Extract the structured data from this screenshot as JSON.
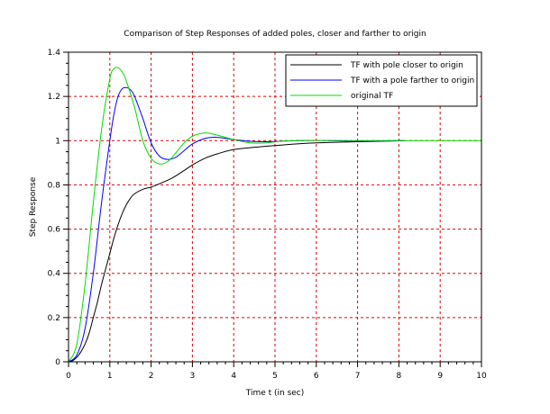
{
  "chart_data": {
    "type": "line",
    "title": "Comparison of Step Responses of added poles, closer and farther to origin",
    "xlabel": "Time t (in sec)",
    "ylabel": "Step Response",
    "xlim": [
      0,
      10
    ],
    "ylim": [
      0,
      1.4
    ],
    "x_ticks": [
      "0",
      "1",
      "2",
      "3",
      "4",
      "5",
      "6",
      "7",
      "8",
      "9",
      "10"
    ],
    "y_ticks": [
      "0",
      "0.2",
      "0.4",
      "0.6",
      "0.8",
      "1",
      "1.2",
      "1.4"
    ],
    "grid": true,
    "legend_position": "top-right",
    "series": [
      {
        "name": "TF with pole closer to origin",
        "color": "#000000",
        "x": [
          0,
          0.1,
          0.2,
          0.3,
          0.4,
          0.5,
          0.6,
          0.7,
          0.8,
          0.9,
          1.0,
          1.1,
          1.2,
          1.3,
          1.4,
          1.5,
          1.6,
          1.8,
          2.0,
          2.2,
          2.5,
          2.8,
          3.0,
          3.3,
          3.6,
          4.0,
          4.5,
          5.0,
          5.5,
          6.0,
          7.0,
          8.0,
          8.1
        ],
        "y": [
          0,
          0.005,
          0.02,
          0.045,
          0.08,
          0.13,
          0.2,
          0.27,
          0.35,
          0.42,
          0.49,
          0.56,
          0.62,
          0.67,
          0.71,
          0.74,
          0.76,
          0.78,
          0.79,
          0.805,
          0.83,
          0.865,
          0.89,
          0.92,
          0.94,
          0.96,
          0.97,
          0.978,
          0.985,
          0.99,
          0.995,
          0.999,
          1.0
        ]
      },
      {
        "name": "TF with a pole farther to origin",
        "color": "#0000ff",
        "x": [
          0,
          0.2,
          0.4,
          0.6,
          0.8,
          1.0,
          1.1,
          1.2,
          1.3,
          1.4,
          1.5,
          1.6,
          1.8,
          2.0,
          2.2,
          2.4,
          2.6,
          2.8,
          3.0,
          3.3,
          3.6,
          4.0,
          4.4,
          4.8,
          5.2,
          5.6,
          6.0,
          7.0,
          8.0,
          8.1
        ],
        "y": [
          0,
          0.03,
          0.15,
          0.4,
          0.72,
          1.0,
          1.12,
          1.2,
          1.235,
          1.24,
          1.23,
          1.2,
          1.1,
          0.99,
          0.93,
          0.915,
          0.925,
          0.955,
          0.985,
          1.01,
          1.015,
          1.005,
          0.997,
          0.995,
          0.998,
          1.0,
          1.001,
          0.998,
          1.0,
          1.0
        ]
      },
      {
        "name": "original TF",
        "color": "#00dd00",
        "x": [
          0,
          0.2,
          0.4,
          0.6,
          0.8,
          1.0,
          1.1,
          1.2,
          1.3,
          1.4,
          1.6,
          1.8,
          2.0,
          2.2,
          2.4,
          2.6,
          2.8,
          3.0,
          3.3,
          3.6,
          4.0,
          4.4,
          4.8,
          5.2,
          6.0,
          7.0,
          8.0,
          9.0,
          10.0
        ],
        "y": [
          0,
          0.08,
          0.35,
          0.72,
          1.05,
          1.28,
          1.325,
          1.33,
          1.31,
          1.27,
          1.15,
          1.0,
          0.92,
          0.895,
          0.905,
          0.945,
          0.99,
          1.02,
          1.035,
          1.025,
          1.005,
          0.99,
          0.99,
          0.998,
          1.001,
          1.0,
          1.0,
          1.0,
          1.0
        ]
      }
    ]
  }
}
